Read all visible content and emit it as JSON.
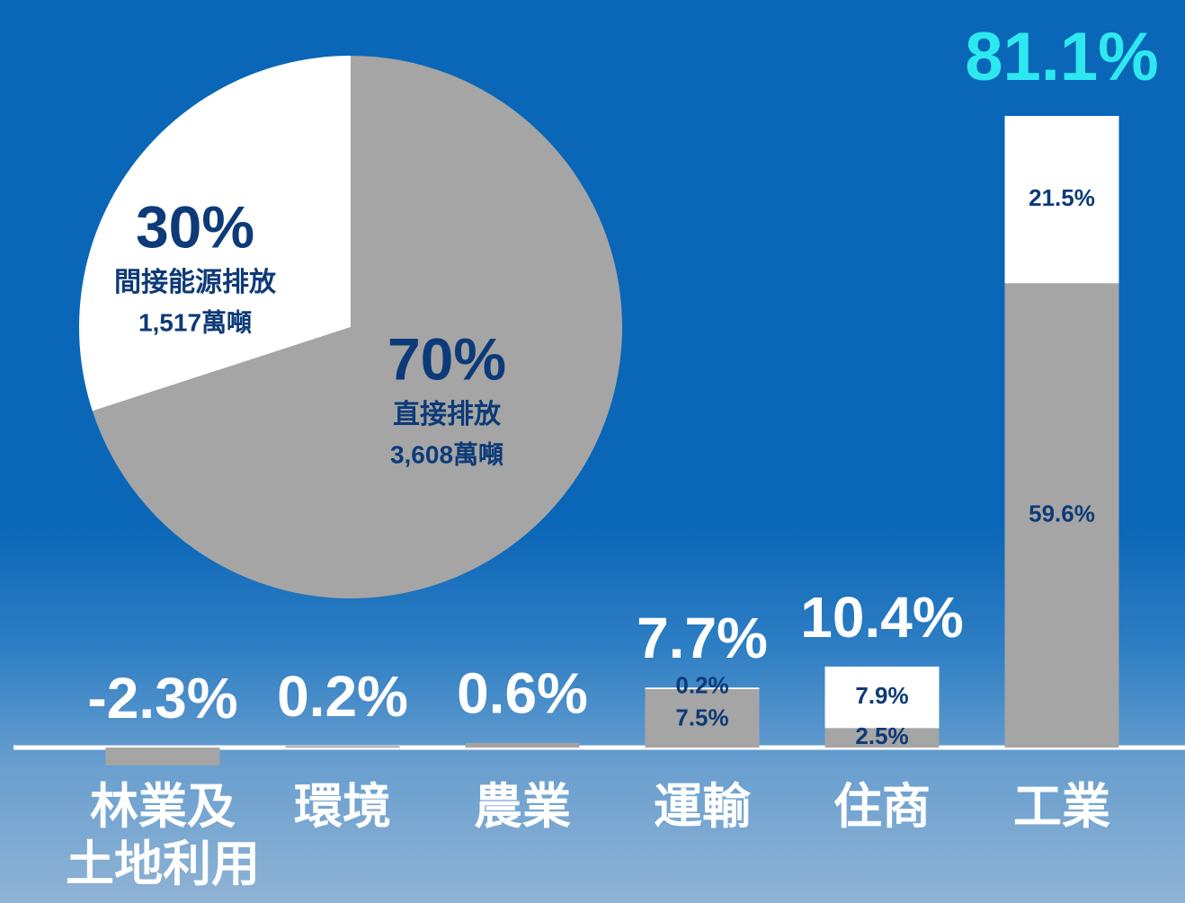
{
  "chart_data": [
    {
      "type": "pie",
      "categories": [
        "直接排放",
        "間接能源排放"
      ],
      "values": [
        70,
        30
      ],
      "value_labels": [
        "70%",
        "30%"
      ],
      "amount_labels": [
        "3,608萬噸",
        "1,517萬噸"
      ],
      "colors": [
        "#a5a5a5",
        "#ffffff"
      ]
    },
    {
      "type": "stacked_bar",
      "categories": [
        "林業及\n土地利用",
        "環境",
        "農業",
        "運輸",
        "住商",
        "工業"
      ],
      "series": [
        {
          "color": "#a5a5a5",
          "values": [
            -2.3,
            0.2,
            0.6,
            7.5,
            2.5,
            59.6
          ],
          "value_labels": [
            null,
            null,
            null,
            "7.5%",
            "2.5%",
            "59.6%"
          ]
        },
        {
          "color": "#ffffff",
          "values": [
            null,
            null,
            null,
            0.2,
            7.9,
            21.5
          ],
          "value_labels": [
            null,
            null,
            null,
            "0.2%",
            "7.9%",
            "21.5%"
          ]
        }
      ],
      "totals": [
        -2.3,
        0.2,
        0.6,
        7.7,
        10.4,
        81.1
      ],
      "total_labels": [
        "-2.3%",
        "0.2%",
        "0.6%",
        "7.7%",
        "10.4%",
        "81.1%"
      ],
      "total_colors": [
        "#ffffff",
        "#ffffff",
        "#ffffff",
        "#ffffff",
        "#ffffff",
        "#2ee8f0"
      ]
    }
  ]
}
